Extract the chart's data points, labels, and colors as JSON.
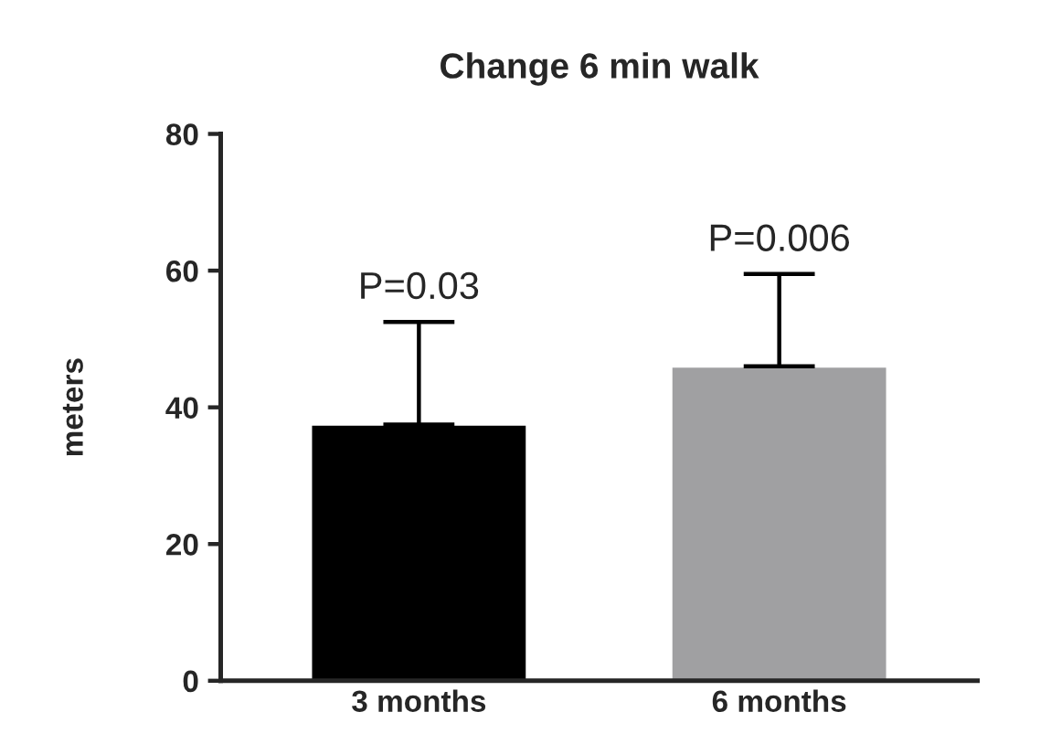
{
  "chart_data": {
    "type": "bar",
    "title": "Change 6 min walk",
    "ylabel": "meters",
    "categories": [
      "3 months",
      "6 months"
    ],
    "values": [
      37.5,
      46
    ],
    "colors": [
      "#000000",
      "#a0a0a2"
    ],
    "errors": [
      [
        37.5,
        52.5
      ],
      [
        46,
        59.5
      ]
    ],
    "ylim": [
      0,
      80
    ],
    "yticks": [
      0,
      20,
      40,
      60,
      80
    ],
    "grid": false,
    "annotations": [
      {
        "text": "P=0.03",
        "x": "3 months",
        "y": 52.5
      },
      {
        "text": "P=0.006",
        "x": "6 months",
        "y": 59.5
      }
    ]
  }
}
